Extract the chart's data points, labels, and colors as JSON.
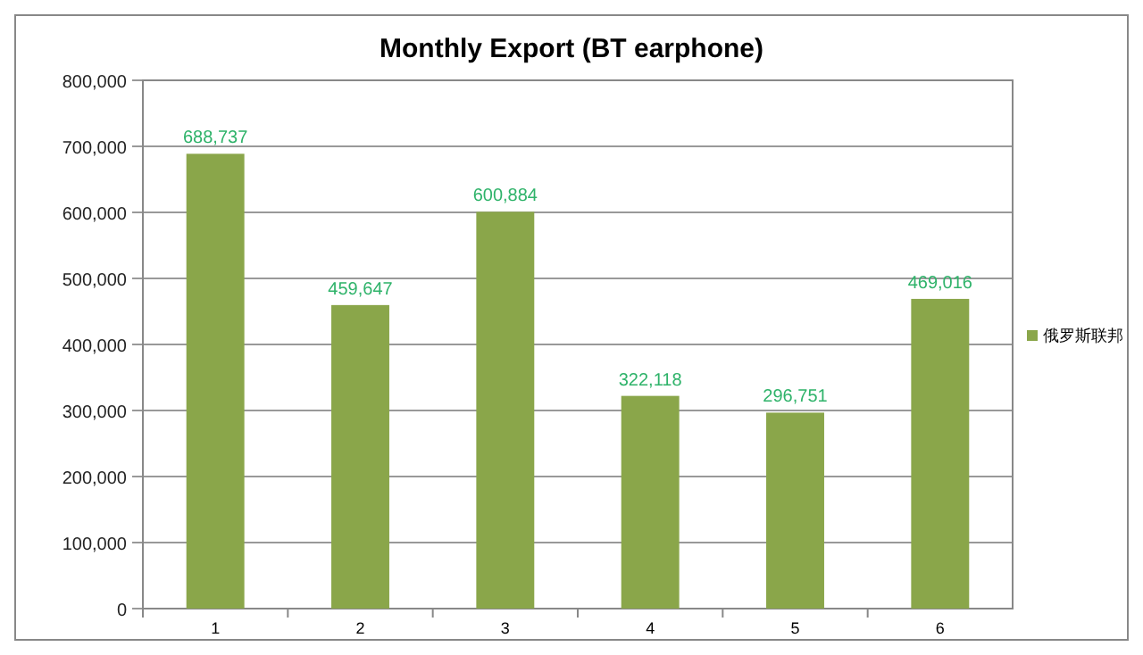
{
  "chart_data": {
    "type": "bar",
    "title": "Monthly Export (BT earphone)",
    "categories": [
      "1",
      "2",
      "3",
      "4",
      "5",
      "6"
    ],
    "series": [
      {
        "name": "俄罗斯联邦",
        "color": "#8aa64a",
        "values": [
          688737,
          459647,
          600884,
          322118,
          296751,
          469016
        ],
        "value_labels": [
          "688,737",
          "459,647",
          "600,884",
          "322,118",
          "296,751",
          "469,016"
        ]
      }
    ],
    "ylim": [
      0,
      800000
    ],
    "yticks": [
      {
        "value": 0,
        "label": "0"
      },
      {
        "value": 100000,
        "label": "100,000"
      },
      {
        "value": 200000,
        "label": "200,000"
      },
      {
        "value": 300000,
        "label": "300,000"
      },
      {
        "value": 400000,
        "label": "400,000"
      },
      {
        "value": 500000,
        "label": "500,000"
      },
      {
        "value": 600000,
        "label": "600,000"
      },
      {
        "value": 700000,
        "label": "700,000"
      },
      {
        "value": 800000,
        "label": "800,000"
      }
    ],
    "grid": "y",
    "legend": "right"
  }
}
